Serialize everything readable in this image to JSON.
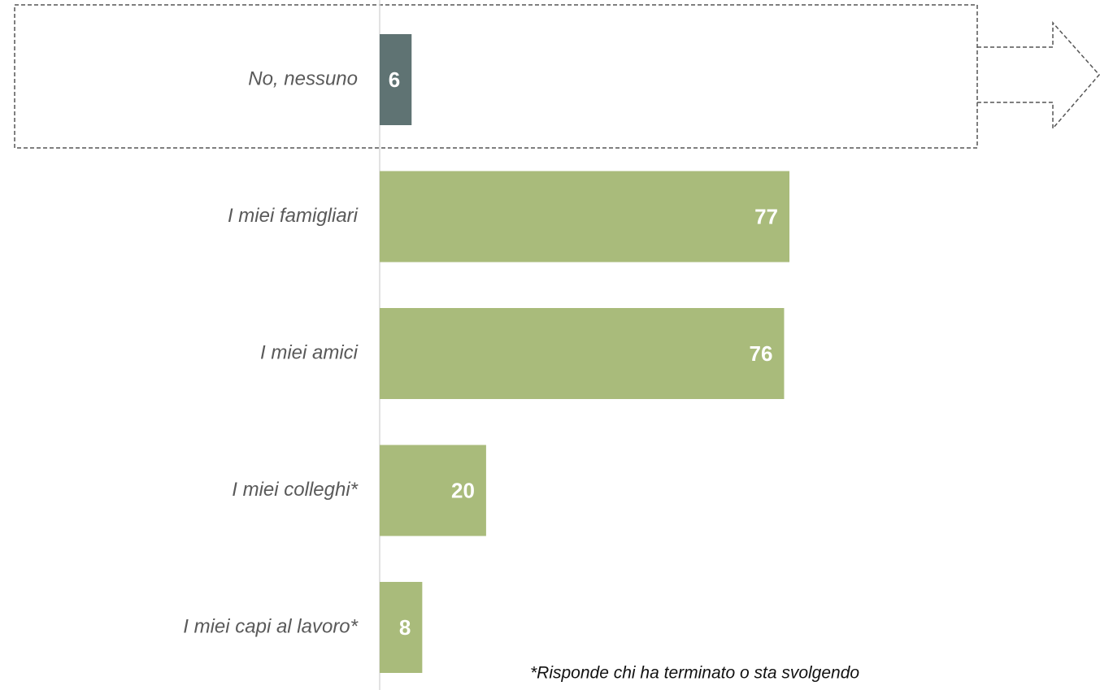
{
  "chart_data": {
    "type": "bar",
    "orientation": "horizontal",
    "categories": [
      "No, nessuno",
      "I miei famigliari",
      "I miei amici",
      "I miei colleghi*",
      "I miei capi al lavoro*"
    ],
    "values": [
      6,
      77,
      76,
      20,
      8
    ],
    "colors": [
      "#5f7373",
      "#a9bb7b",
      "#a9bb7b",
      "#a9bb7b",
      "#a9bb7b"
    ],
    "footnote": "*Risponde chi ha terminato o sta svolgendo"
  }
}
